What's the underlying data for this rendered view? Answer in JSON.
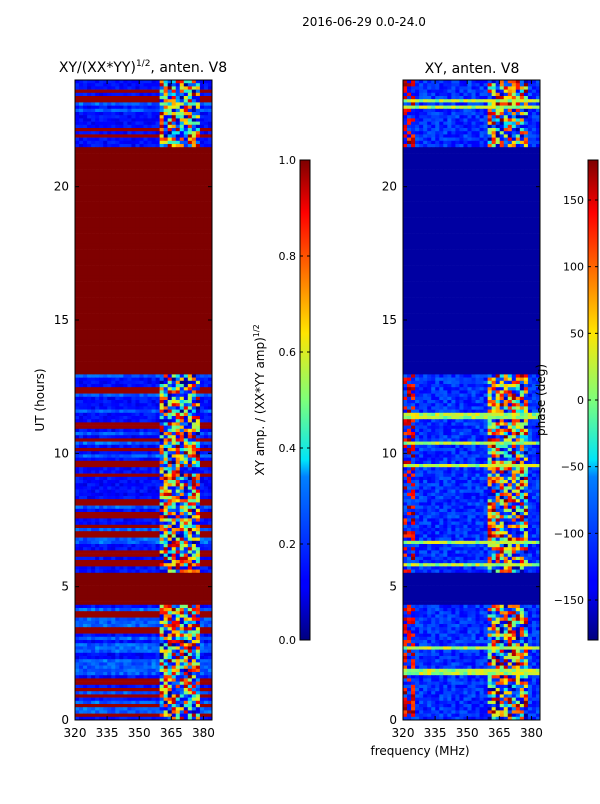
{
  "figure_title": "2016-06-29 0.0-24.0",
  "chart_data": [
    {
      "type": "heatmap",
      "title_main": "XY/(XX*YY)",
      "title_sup": "1/2",
      "title_tail": ", anten. V8",
      "ylabel": "UT (hours)",
      "xlabel": "",
      "xlim": [
        320,
        384
      ],
      "ylim": [
        0,
        24
      ],
      "xticks": [
        "320",
        "335",
        "350",
        "365",
        "380"
      ],
      "xtick_values": [
        320,
        335,
        350,
        365,
        380
      ],
      "yticks": [
        "0",
        "5",
        "10",
        "15",
        "20"
      ],
      "ytick_values": [
        0,
        5,
        10,
        15,
        20
      ],
      "saturated_blocks": [
        {
          "ut_start": 13.0,
          "ut_end": 21.5,
          "value": 1.0
        },
        {
          "ut_start": 4.3,
          "ut_end": 5.5,
          "value": 1.0
        }
      ],
      "rfi_band_mhz": [
        360,
        378
      ],
      "colorbar": {
        "label_main": "XY amp. / (XX*YY amp)",
        "label_sup": "1/2",
        "range": [
          0.0,
          1.0
        ],
        "ticks": [
          "0.0",
          "0.2",
          "0.4",
          "0.6",
          "0.8",
          "1.0"
        ],
        "tick_values": [
          0.0,
          0.2,
          0.4,
          0.6,
          0.8,
          1.0
        ]
      }
    },
    {
      "type": "heatmap",
      "title": "XY, anten. V8",
      "ylabel": "",
      "xlabel": "frequency (MHz)",
      "xlim": [
        320,
        384
      ],
      "ylim": [
        0,
        24
      ],
      "xticks": [
        "320",
        "335",
        "350",
        "365",
        "380"
      ],
      "xtick_values": [
        320,
        335,
        350,
        365,
        380
      ],
      "yticks": [
        "0",
        "5",
        "10",
        "15",
        "20"
      ],
      "ytick_values": [
        0,
        5,
        10,
        15,
        20
      ],
      "flagged_blocks": [
        {
          "ut_start": 13.0,
          "ut_end": 21.5,
          "value": -180
        },
        {
          "ut_start": 4.3,
          "ut_end": 5.5,
          "value": -180
        }
      ],
      "rfi_band_mhz": [
        360,
        378
      ],
      "colorbar": {
        "label": "phase (deg)",
        "range": [
          -180,
          180
        ],
        "ticks": [
          "150",
          "100",
          "50",
          "0",
          "−50",
          "−100",
          "−150"
        ],
        "tick_values": [
          150,
          100,
          50,
          0,
          -50,
          -100,
          -150
        ]
      }
    }
  ]
}
